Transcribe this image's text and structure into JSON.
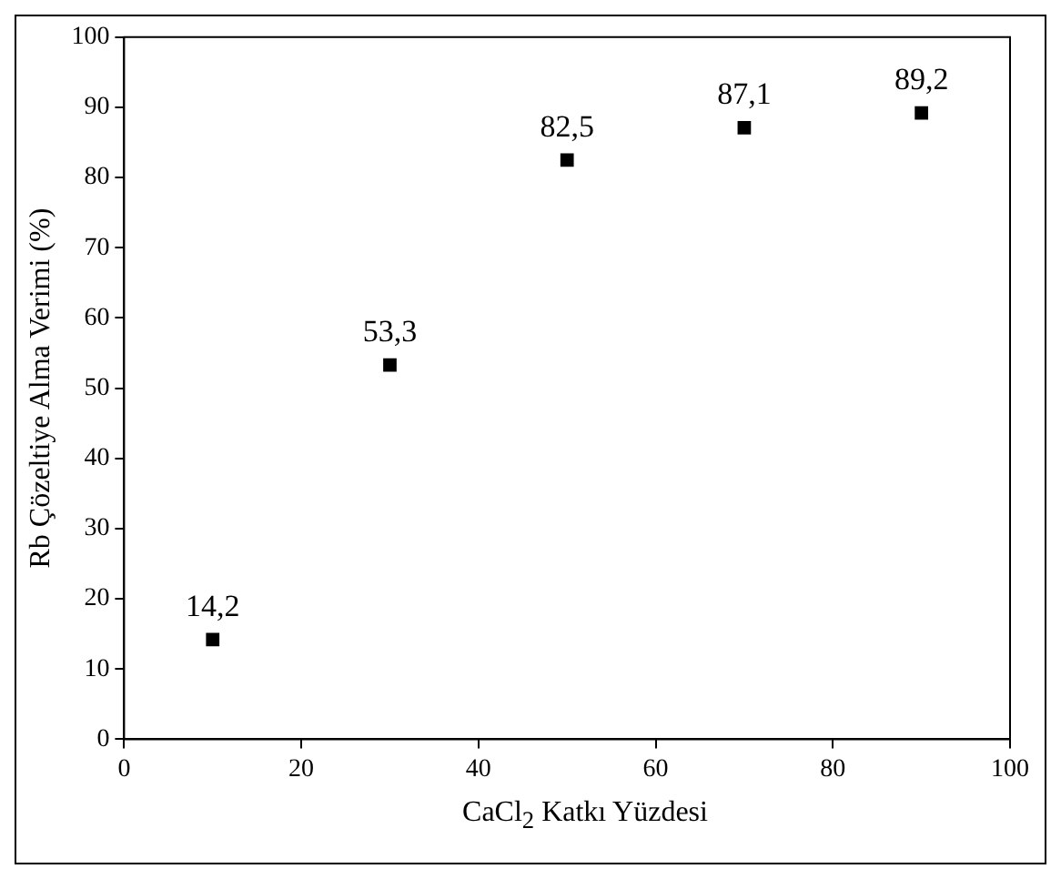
{
  "chart_data": {
    "type": "scatter",
    "xlabel": "CaCl$_{2}$ Katkı Yüzdesi",
    "ylabel": "Rb Çözeltiye Alma Verimi (%)",
    "x": [
      10,
      30,
      50,
      70,
      90
    ],
    "series": [
      {
        "color": "#000000",
        "values": [
          14.2,
          53.3,
          82.5,
          87.1,
          89.2
        ],
        "value_labels": [
          "14,2",
          "53,3",
          "82,5",
          "87,1",
          "89,2"
        ]
      }
    ],
    "xlim": [
      0,
      100
    ],
    "xticks": [
      0,
      20,
      40,
      60,
      80,
      100
    ],
    "ylim": [
      0,
      100
    ],
    "yticks": [
      0,
      10,
      20,
      30,
      40,
      50,
      60,
      70,
      80,
      90,
      100
    ],
    "marker": "square",
    "grid": false,
    "legend": false
  }
}
